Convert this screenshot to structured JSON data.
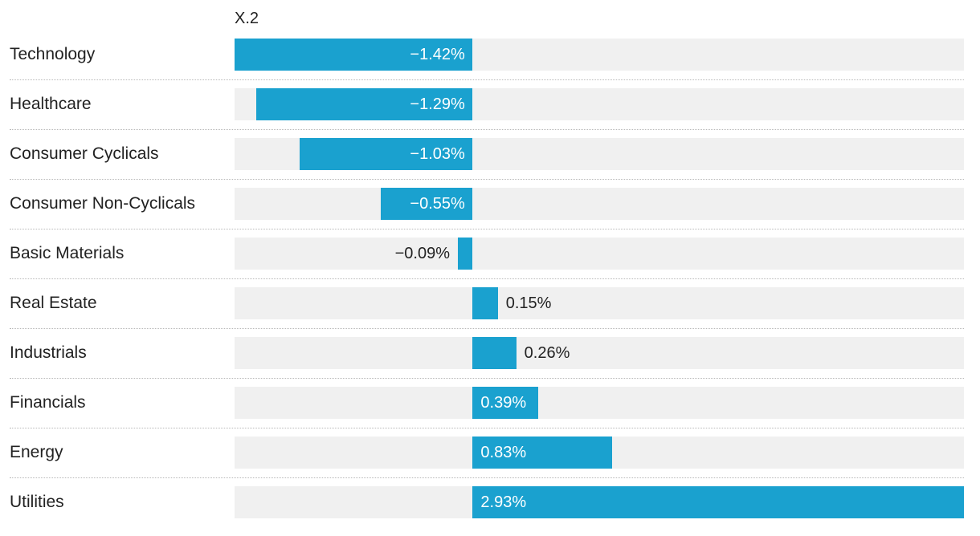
{
  "chart_data": {
    "type": "bar",
    "orientation": "horizontal",
    "column_header": "X.2",
    "categories": [
      "Technology",
      "Healthcare",
      "Consumer Cyclicals",
      "Consumer Non-Cyclicals",
      "Basic Materials",
      "Real Estate",
      "Industrials",
      "Financials",
      "Energy",
      "Utilities"
    ],
    "values": [
      -1.42,
      -1.29,
      -1.03,
      -0.55,
      -0.09,
      0.15,
      0.26,
      0.39,
      0.83,
      2.93
    ],
    "value_labels": [
      "−1.42%",
      "−1.29%",
      "−1.03%",
      "−0.55%",
      "−0.09%",
      "0.15%",
      "0.26%",
      "0.39%",
      "0.83%",
      "2.93%"
    ],
    "xlim": [
      -1.42,
      2.93
    ],
    "bar_color": "#1aa1cf",
    "track_color": "#f0f0f0"
  }
}
